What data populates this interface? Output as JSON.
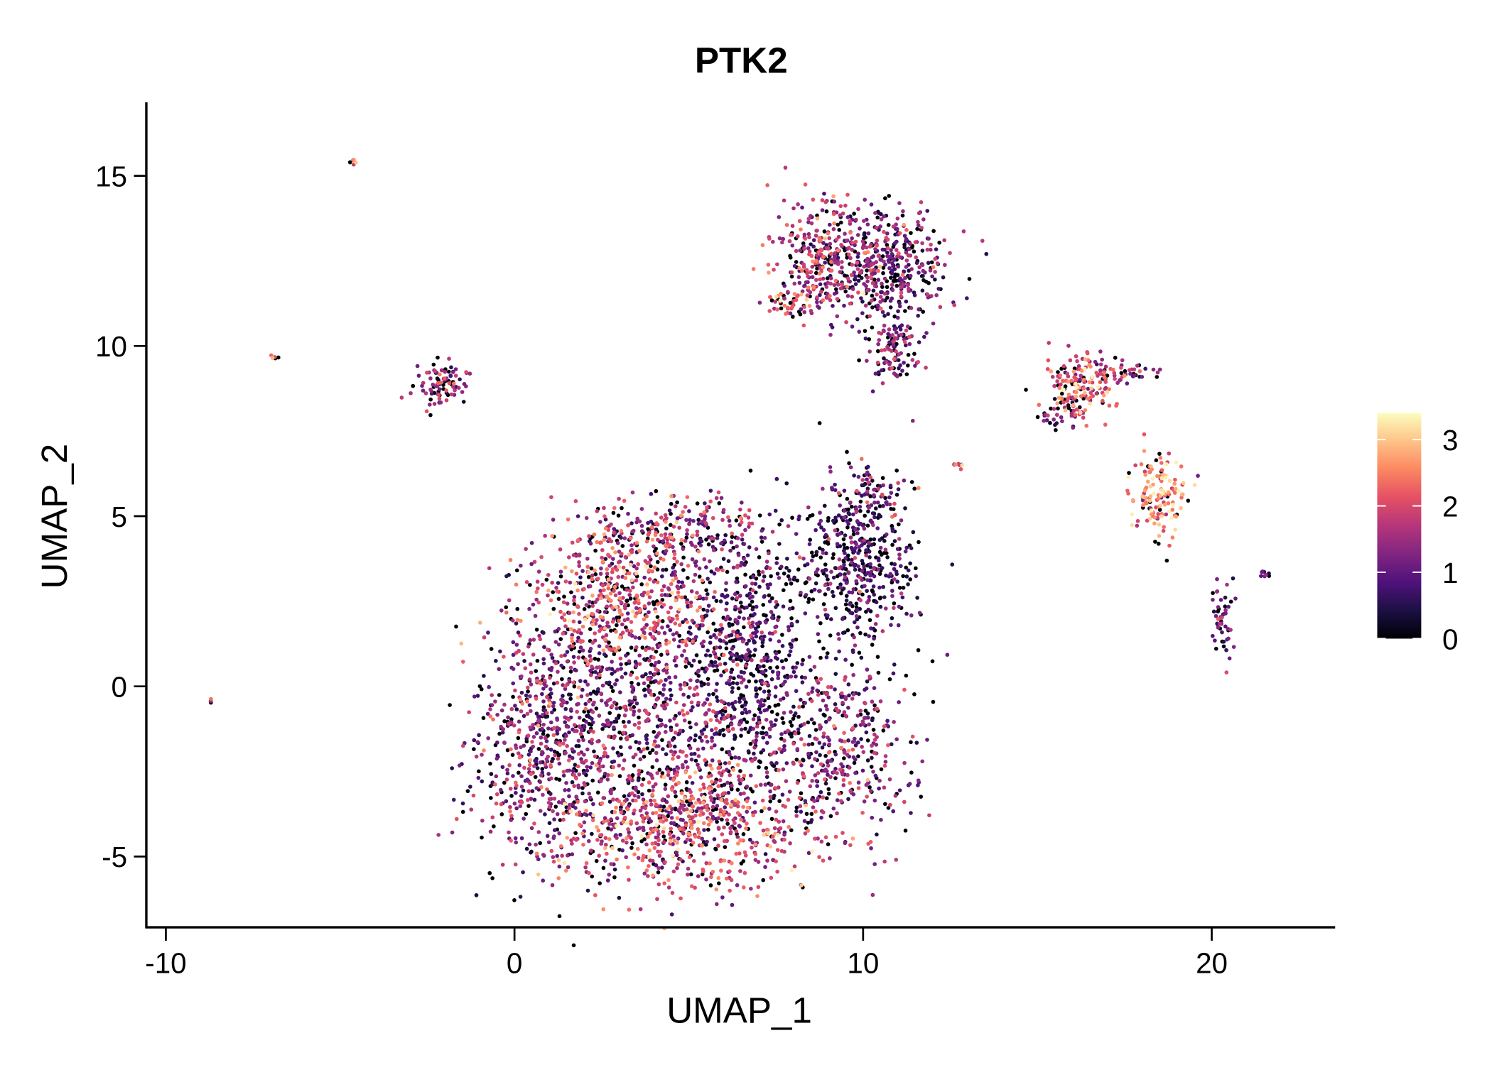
{
  "chart_data": {
    "type": "scatter",
    "title": "PTK2",
    "xlabel": "UMAP_1",
    "ylabel": "UMAP_2",
    "xlim": [
      -10.56,
      23.54
    ],
    "ylim": [
      -7.08,
      17.16
    ],
    "xticks": [
      -10,
      0,
      10,
      20
    ],
    "xtick_labels": [
      "-10",
      "0",
      "10",
      "20"
    ],
    "yticks": [
      -5,
      0,
      5,
      10,
      15
    ],
    "ytick_labels": [
      "-5",
      "0",
      "5",
      "10",
      "15"
    ],
    "grid": false,
    "legend": {
      "type": "colorbar",
      "placement": "right",
      "range": [
        0,
        3.4
      ],
      "ticks": [
        0,
        1,
        2,
        3
      ],
      "tick_labels": [
        "0",
        "1",
        "2",
        "3"
      ],
      "colormap": "magma",
      "colors": [
        "#000004",
        "#1c1044",
        "#4f127b",
        "#812581",
        "#b5367a",
        "#e55064",
        "#fb8761",
        "#fec287",
        "#fcfdbf"
      ]
    },
    "clusters": [
      {
        "cx": 1.0,
        "cy": -1.5,
        "sx": 1.2,
        "sy": 1.9,
        "n": 700,
        "expr": 1.2
      },
      {
        "cx": 5.0,
        "cy": -3.9,
        "sx": 2.1,
        "sy": 1.0,
        "n": 800,
        "expr": 1.8
      },
      {
        "cx": 3.0,
        "cy": 2.6,
        "sx": 1.4,
        "sy": 0.9,
        "n": 500,
        "expr": 1.9
      },
      {
        "cx": 4.6,
        "cy": 4.6,
        "sx": 1.4,
        "sy": 0.6,
        "n": 250,
        "expr": 1.5
      },
      {
        "cx": 6.6,
        "cy": 1.0,
        "sx": 0.9,
        "sy": 1.8,
        "n": 600,
        "expr": 0.7
      },
      {
        "cx": 4.0,
        "cy": -0.5,
        "sx": 1.5,
        "sy": 1.4,
        "n": 500,
        "expr": 1.3
      },
      {
        "cx": 9.3,
        "cy": -1.6,
        "sx": 1.1,
        "sy": 1.3,
        "n": 400,
        "expr": 1.2
      },
      {
        "cx": 9.8,
        "cy": 3.5,
        "sx": 0.9,
        "sy": 1.1,
        "n": 450,
        "expr": 0.7
      },
      {
        "cx": 10.2,
        "cy": 5.6,
        "sx": 0.4,
        "sy": 0.5,
        "n": 80,
        "expr": 1.0
      },
      {
        "cx": 10.6,
        "cy": 12.4,
        "sx": 0.9,
        "sy": 0.8,
        "n": 450,
        "expr": 1.1
      },
      {
        "cx": 8.7,
        "cy": 12.6,
        "sx": 0.6,
        "sy": 0.9,
        "n": 250,
        "expr": 1.6
      },
      {
        "cx": 10.9,
        "cy": 10.0,
        "sx": 0.4,
        "sy": 0.6,
        "n": 120,
        "expr": 1.2
      },
      {
        "cx": 7.9,
        "cy": 11.3,
        "sx": 0.3,
        "sy": 0.2,
        "n": 30,
        "expr": 2.3
      },
      {
        "cx": -2.1,
        "cy": 8.9,
        "sx": 0.4,
        "sy": 0.35,
        "n": 90,
        "expr": 1.3
      },
      {
        "cx": 16.2,
        "cy": 8.8,
        "sx": 0.45,
        "sy": 0.45,
        "n": 160,
        "expr": 2.0
      },
      {
        "cx": 17.3,
        "cy": 9.2,
        "sx": 0.6,
        "sy": 0.15,
        "n": 50,
        "expr": 1.6
      },
      {
        "cx": 15.6,
        "cy": 7.9,
        "sx": 0.3,
        "sy": 0.2,
        "n": 25,
        "expr": 1.0
      },
      {
        "cx": 18.5,
        "cy": 5.6,
        "sx": 0.4,
        "sy": 0.6,
        "n": 140,
        "expr": 2.5
      },
      {
        "cx": 20.3,
        "cy": 2.0,
        "sx": 0.15,
        "sy": 0.7,
        "n": 50,
        "expr": 0.9
      },
      {
        "cx": -4.6,
        "cy": 15.4,
        "sx": 0.05,
        "sy": 0.05,
        "n": 5,
        "expr": 2.2
      },
      {
        "cx": -6.9,
        "cy": 9.7,
        "sx": 0.05,
        "sy": 0.05,
        "n": 5,
        "expr": 2.3
      },
      {
        "cx": -8.7,
        "cy": -0.45,
        "sx": 0.03,
        "sy": 0.05,
        "n": 3,
        "expr": 2.0
      },
      {
        "cx": 21.5,
        "cy": 3.3,
        "sx": 0.1,
        "sy": 0.08,
        "n": 8,
        "expr": 0.9
      },
      {
        "cx": 12.7,
        "cy": 6.5,
        "sx": 0.1,
        "sy": 0.05,
        "n": 8,
        "expr": 2.2
      },
      {
        "cx": 11.6,
        "cy": 5.8,
        "sx": 0.02,
        "sy": 0.02,
        "n": 1,
        "expr": 2.8
      }
    ]
  }
}
